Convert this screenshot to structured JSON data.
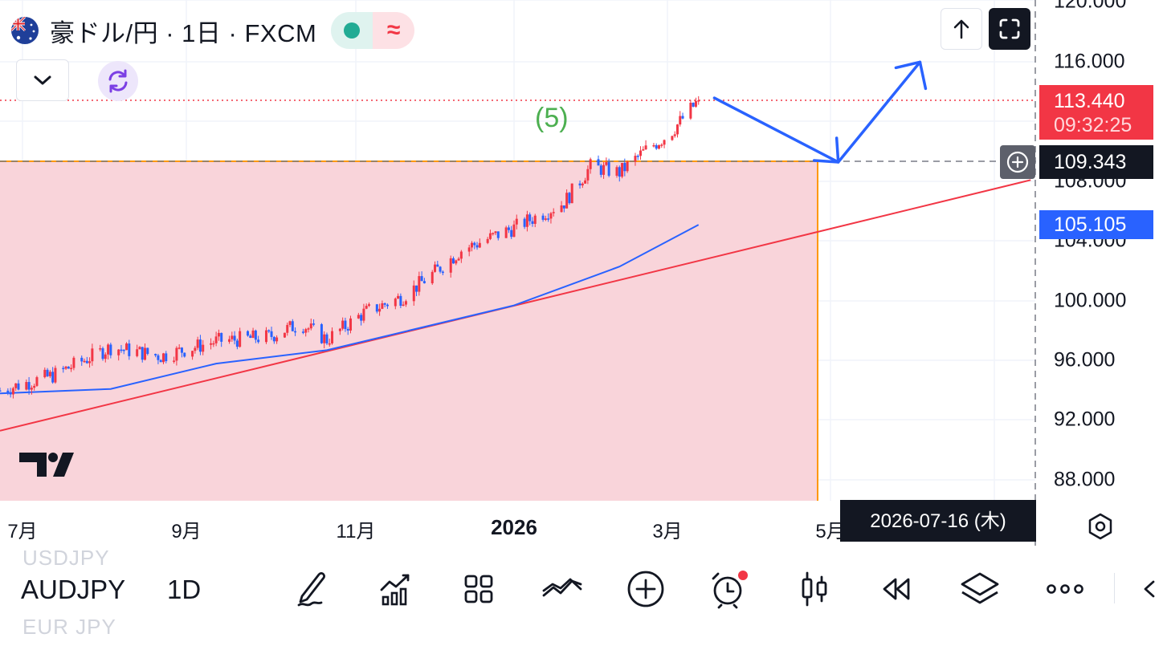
{
  "header": {
    "symbol_title": "豪ドル/円 · 1日 · FXCM",
    "status_icon": "market-open-dot",
    "status_icon2": "approx-icon",
    "status_glyph": "≈",
    "collapse_icon": "chevron-down-icon",
    "refresh_icon": "refresh-icon",
    "upload_icon": "arrow-up-icon",
    "fullscreen_icon": "fullscreen-icon"
  },
  "annotation": {
    "wave_label": "(5)"
  },
  "price_axis": {
    "ticks": [
      "120.000",
      "116.000",
      "108.000",
      "104.000",
      "100.000",
      "96.000",
      "92.000",
      "88.000"
    ],
    "last_price": "113.440",
    "countdown": "09:32:25",
    "crosshair_price": "109.343",
    "ma_value": "105.105"
  },
  "time_axis": {
    "ticks": [
      "7月",
      "9月",
      "11月",
      "2026",
      "3月",
      "5月"
    ],
    "cursor_date": "2026-07-16 (木)"
  },
  "toolbar": {
    "symbol": "AUDJPY",
    "interval": "1D",
    "ghost_prev": "USDJPY",
    "ghost_next": "EUR JPY",
    "icons": [
      "draw-icon",
      "indicators-icon",
      "layout-icon",
      "compare-icon",
      "add-icon",
      "alert-icon",
      "candle-type-icon",
      "replay-icon",
      "layers-icon",
      "more-icon",
      "back-icon"
    ]
  },
  "colors": {
    "up": "#f23645",
    "down": "#2962ff",
    "zone_fill": "#f9d4da",
    "ma_line": "#2962ff",
    "trend_line": "#f23645",
    "projection": "#2962ff",
    "zone_border": "#ff9800"
  },
  "chart_data": {
    "type": "candlestick",
    "symbol": "AUDJPY",
    "timeframe": "1D",
    "x": [
      "2025-06-20",
      "2025-07-10",
      "2025-08-01",
      "2025-08-20",
      "2025-09-10",
      "2025-09-30",
      "2025-10-12",
      "2025-10-22",
      "2025-11-05",
      "2025-11-20",
      "2025-12-01",
      "2025-12-12",
      "2026-01-01",
      "2026-01-20",
      "2026-01-30",
      "2026-02-10",
      "2026-02-20",
      "2026-03-01",
      "2026-03-12"
    ],
    "close": [
      94.0,
      95.0,
      96.9,
      96.3,
      97.3,
      97.6,
      98.5,
      97.4,
      99.2,
      100.3,
      101.8,
      103.4,
      104.9,
      106.6,
      109.0,
      108.6,
      110.1,
      111.2,
      113.44
    ],
    "moving_average": [
      {
        "x": "2025-06-20",
        "y": 93.8
      },
      {
        "x": "2025-08-01",
        "y": 94.1
      },
      {
        "x": "2025-09-10",
        "y": 95.8
      },
      {
        "x": "2025-10-22",
        "y": 96.7
      },
      {
        "x": "2026-01-01",
        "y": 99.7
      },
      {
        "x": "2026-02-10",
        "y": 102.3
      },
      {
        "x": "2026-03-12",
        "y": 105.1
      }
    ],
    "trend_line": [
      {
        "x": "2025-06-20",
        "y": 91.3
      },
      {
        "x": "2026-07-16",
        "y": 108.1
      }
    ],
    "projection": [
      {
        "x": "2026-03-18",
        "y": 113.6
      },
      {
        "x": "2026-05-04",
        "y": 109.3
      },
      {
        "x": "2026-06-04",
        "y": 116.0
      }
    ],
    "zone": {
      "price_top": 109.343,
      "x_end": "2026-05-04"
    },
    "ylim": [
      87,
      121
    ]
  }
}
